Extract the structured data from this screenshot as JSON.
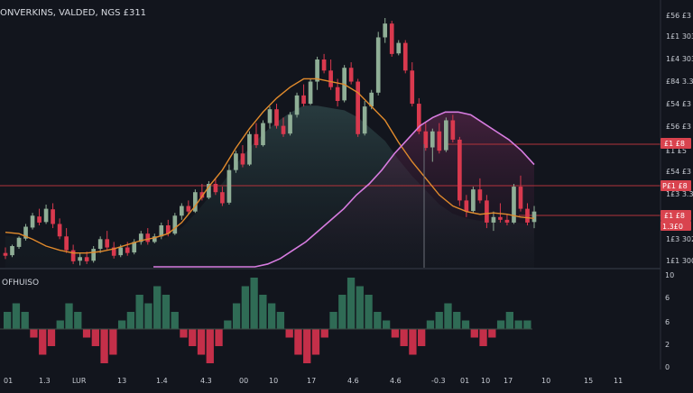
{
  "header": {
    "title": "ONVERKINS, VALDED, NGS £311"
  },
  "colors": {
    "background": "#12151d",
    "bull": "#8fae96",
    "bear": "#d9394e",
    "ma_fast": "#e08a2c",
    "ma_slow": "#d77ce0",
    "level_line": "#b3333b",
    "tag_bg": "#d9434e",
    "axis_text": "#c8ccd4",
    "hist_pos": "#2f6b55",
    "hist_neg": "#c42f49"
  },
  "price_axis": {
    "labels": [
      "£56 £3",
      "1£1 303",
      "1£4 303",
      "£84 3.3",
      "£54 £3",
      "£56 £3",
      "£1 £5",
      "£54 £3",
      "1£3 3.3",
      "1£3 302",
      "1£1 300"
    ]
  },
  "price_tags": [
    "£1 £8",
    "P£1 £8",
    "£1 £8",
    "1.3£0"
  ],
  "indicator": {
    "title": "OFHUISO",
    "axis_labels": [
      "10",
      "6",
      "6",
      "2",
      "0"
    ]
  },
  "time_axis": {
    "labels": [
      "01",
      "1.3",
      "LUR",
      "13",
      "1.4",
      "4.3",
      "00",
      "10",
      "17",
      "4.6",
      "4.6",
      "-0.3",
      "01",
      "10",
      "17",
      "10",
      "15",
      "11"
    ]
  },
  "chart_data": {
    "type": "candlestick",
    "title": "ONVERKINS, VALDED, NGS £311",
    "candles": [
      {
        "o": 1.5,
        "h": 1.7,
        "l": 1.28,
        "c": 1.4
      },
      {
        "o": 1.42,
        "h": 1.8,
        "l": 1.35,
        "c": 1.75
      },
      {
        "o": 1.72,
        "h": 2.1,
        "l": 1.65,
        "c": 2.05
      },
      {
        "o": 2.02,
        "h": 2.55,
        "l": 1.95,
        "c": 2.45
      },
      {
        "o": 2.42,
        "h": 2.95,
        "l": 2.35,
        "c": 2.85
      },
      {
        "o": 2.82,
        "h": 3.1,
        "l": 2.5,
        "c": 2.6
      },
      {
        "o": 2.62,
        "h": 3.25,
        "l": 2.55,
        "c": 3.1
      },
      {
        "o": 3.08,
        "h": 3.3,
        "l": 2.4,
        "c": 2.55
      },
      {
        "o": 2.55,
        "h": 2.75,
        "l": 2.0,
        "c": 2.1
      },
      {
        "o": 2.1,
        "h": 2.4,
        "l": 1.5,
        "c": 1.6
      },
      {
        "o": 1.6,
        "h": 1.8,
        "l": 1.1,
        "c": 1.2
      },
      {
        "o": 1.22,
        "h": 1.5,
        "l": 1.05,
        "c": 1.35
      },
      {
        "o": 1.35,
        "h": 1.55,
        "l": 1.1,
        "c": 1.2
      },
      {
        "o": 1.22,
        "h": 1.75,
        "l": 1.15,
        "c": 1.65
      },
      {
        "o": 1.65,
        "h": 2.1,
        "l": 1.5,
        "c": 2.0
      },
      {
        "o": 2.0,
        "h": 2.3,
        "l": 1.6,
        "c": 1.7
      },
      {
        "o": 1.7,
        "h": 1.9,
        "l": 1.3,
        "c": 1.4
      },
      {
        "o": 1.42,
        "h": 1.8,
        "l": 1.35,
        "c": 1.7
      },
      {
        "o": 1.7,
        "h": 1.9,
        "l": 1.4,
        "c": 1.5
      },
      {
        "o": 1.52,
        "h": 2.0,
        "l": 1.45,
        "c": 1.9
      },
      {
        "o": 1.9,
        "h": 2.3,
        "l": 1.8,
        "c": 2.2
      },
      {
        "o": 2.2,
        "h": 2.4,
        "l": 1.8,
        "c": 1.9
      },
      {
        "o": 1.9,
        "h": 2.2,
        "l": 1.85,
        "c": 2.1
      },
      {
        "o": 2.1,
        "h": 2.6,
        "l": 2.0,
        "c": 2.5
      },
      {
        "o": 2.5,
        "h": 2.7,
        "l": 2.1,
        "c": 2.2
      },
      {
        "o": 2.2,
        "h": 2.95,
        "l": 2.15,
        "c": 2.85
      },
      {
        "o": 2.85,
        "h": 3.3,
        "l": 2.7,
        "c": 3.2
      },
      {
        "o": 3.2,
        "h": 3.4,
        "l": 2.9,
        "c": 3.0
      },
      {
        "o": 3.0,
        "h": 3.8,
        "l": 2.95,
        "c": 3.7
      },
      {
        "o": 3.7,
        "h": 4.0,
        "l": 3.4,
        "c": 3.5
      },
      {
        "o": 3.5,
        "h": 4.1,
        "l": 3.45,
        "c": 4.0
      },
      {
        "o": 4.0,
        "h": 4.2,
        "l": 3.6,
        "c": 3.7
      },
      {
        "o": 3.7,
        "h": 3.9,
        "l": 3.2,
        "c": 3.3
      },
      {
        "o": 3.32,
        "h": 4.7,
        "l": 3.25,
        "c": 4.5
      },
      {
        "o": 4.5,
        "h": 5.2,
        "l": 4.4,
        "c": 5.1
      },
      {
        "o": 5.1,
        "h": 5.4,
        "l": 4.6,
        "c": 4.7
      },
      {
        "o": 4.7,
        "h": 5.9,
        "l": 4.65,
        "c": 5.8
      },
      {
        "o": 5.8,
        "h": 6.2,
        "l": 5.3,
        "c": 5.4
      },
      {
        "o": 5.4,
        "h": 6.3,
        "l": 5.35,
        "c": 6.2
      },
      {
        "o": 6.2,
        "h": 6.8,
        "l": 6.0,
        "c": 6.7
      },
      {
        "o": 6.7,
        "h": 6.9,
        "l": 6.0,
        "c": 6.1
      },
      {
        "o": 6.1,
        "h": 6.4,
        "l": 5.7,
        "c": 5.8
      },
      {
        "o": 5.82,
        "h": 6.6,
        "l": 5.75,
        "c": 6.5
      },
      {
        "o": 6.5,
        "h": 7.3,
        "l": 6.4,
        "c": 7.2
      },
      {
        "o": 7.2,
        "h": 7.6,
        "l": 6.8,
        "c": 6.9
      },
      {
        "o": 6.9,
        "h": 7.8,
        "l": 6.85,
        "c": 7.7
      },
      {
        "o": 7.7,
        "h": 8.6,
        "l": 7.4,
        "c": 8.5
      },
      {
        "o": 8.5,
        "h": 8.7,
        "l": 8.0,
        "c": 8.1
      },
      {
        "o": 8.1,
        "h": 8.5,
        "l": 7.4,
        "c": 7.5
      },
      {
        "o": 7.5,
        "h": 7.8,
        "l": 6.8,
        "c": 7.0
      },
      {
        "o": 7.02,
        "h": 8.3,
        "l": 6.95,
        "c": 8.2
      },
      {
        "o": 8.2,
        "h": 8.4,
        "l": 7.6,
        "c": 7.7
      },
      {
        "o": 7.7,
        "h": 7.8,
        "l": 5.7,
        "c": 5.8
      },
      {
        "o": 5.82,
        "h": 7.0,
        "l": 5.75,
        "c": 6.8
      },
      {
        "o": 6.8,
        "h": 7.4,
        "l": 6.7,
        "c": 7.3
      },
      {
        "o": 7.3,
        "h": 9.5,
        "l": 7.2,
        "c": 9.3
      },
      {
        "o": 9.3,
        "h": 10.0,
        "l": 9.1,
        "c": 9.8
      },
      {
        "o": 9.8,
        "h": 9.9,
        "l": 8.6,
        "c": 8.7
      },
      {
        "o": 8.72,
        "h": 9.2,
        "l": 8.65,
        "c": 9.1
      },
      {
        "o": 9.1,
        "h": 9.2,
        "l": 8.0,
        "c": 8.1
      },
      {
        "o": 8.1,
        "h": 8.4,
        "l": 6.8,
        "c": 6.9
      },
      {
        "o": 6.9,
        "h": 7.1,
        "l": 5.8,
        "c": 5.9
      },
      {
        "o": 5.9,
        "h": 6.2,
        "l": 5.2,
        "c": 5.3
      },
      {
        "o": 5.32,
        "h": 6.0,
        "l": 4.8,
        "c": 5.9
      },
      {
        "o": 5.9,
        "h": 6.2,
        "l": 5.1,
        "c": 5.2
      },
      {
        "o": 5.22,
        "h": 6.4,
        "l": 5.15,
        "c": 6.3
      },
      {
        "o": 6.3,
        "h": 6.5,
        "l": 5.5,
        "c": 5.6
      },
      {
        "o": 5.6,
        "h": 5.7,
        "l": 3.2,
        "c": 3.4
      },
      {
        "o": 3.4,
        "h": 3.6,
        "l": 2.8,
        "c": 3.0
      },
      {
        "o": 3.02,
        "h": 3.9,
        "l": 2.95,
        "c": 3.8
      },
      {
        "o": 3.8,
        "h": 4.2,
        "l": 3.3,
        "c": 3.4
      },
      {
        "o": 3.4,
        "h": 3.6,
        "l": 2.4,
        "c": 2.6
      },
      {
        "o": 2.6,
        "h": 3.0,
        "l": 2.3,
        "c": 2.8
      },
      {
        "o": 2.8,
        "h": 3.3,
        "l": 2.6,
        "c": 2.7
      },
      {
        "o": 2.7,
        "h": 2.9,
        "l": 2.5,
        "c": 2.6
      },
      {
        "o": 2.6,
        "h": 4.0,
        "l": 2.55,
        "c": 3.9
      },
      {
        "o": 3.9,
        "h": 4.3,
        "l": 3.0,
        "c": 3.1
      },
      {
        "o": 3.1,
        "h": 3.3,
        "l": 2.5,
        "c": 2.6
      },
      {
        "o": 2.62,
        "h": 3.2,
        "l": 2.4,
        "c": 3.0
      }
    ],
    "ma_fast": [
      2.25,
      2.2,
      2.0,
      1.75,
      1.6,
      1.5,
      1.5,
      1.55,
      1.65,
      1.8,
      1.95,
      2.05,
      2.2,
      2.6,
      3.2,
      3.9,
      4.5,
      5.3,
      6.0,
      6.6,
      7.1,
      7.5,
      7.8,
      7.8,
      7.7,
      7.6,
      7.3,
      6.8,
      6.3,
      5.5,
      4.8,
      4.2,
      3.6,
      3.2,
      3.0,
      2.9,
      2.95,
      2.9,
      2.8,
      2.75
    ],
    "ma_slow": [
      0,
      0,
      0,
      0,
      0,
      0,
      0,
      0,
      0,
      0.1,
      0.3,
      0.6,
      0.9,
      1.3,
      1.7,
      2.1,
      2.6,
      3.0,
      3.5,
      4.1,
      4.6,
      5.1,
      5.4,
      5.6,
      5.6,
      5.5,
      5.2,
      4.9,
      4.6,
      4.2,
      3.7
    ],
    "levels": [
      5.4,
      3.6,
      2.75
    ],
    "indicator_bars": [
      2,
      3,
      2,
      -1,
      -3,
      -2,
      1,
      3,
      2,
      -1,
      -2,
      -4,
      -3,
      1,
      2,
      4,
      3,
      5,
      4,
      2,
      -1,
      -2,
      -3,
      -4,
      -2,
      1,
      3,
      5,
      6,
      4,
      3,
      2,
      -1,
      -3,
      -4,
      -3,
      -1,
      2,
      4,
      6,
      5,
      4,
      2,
      1,
      -1,
      -2,
      -3,
      -2,
      1,
      2,
      3,
      2,
      1,
      -1,
      -2,
      -1,
      1,
      2,
      1,
      1
    ]
  }
}
